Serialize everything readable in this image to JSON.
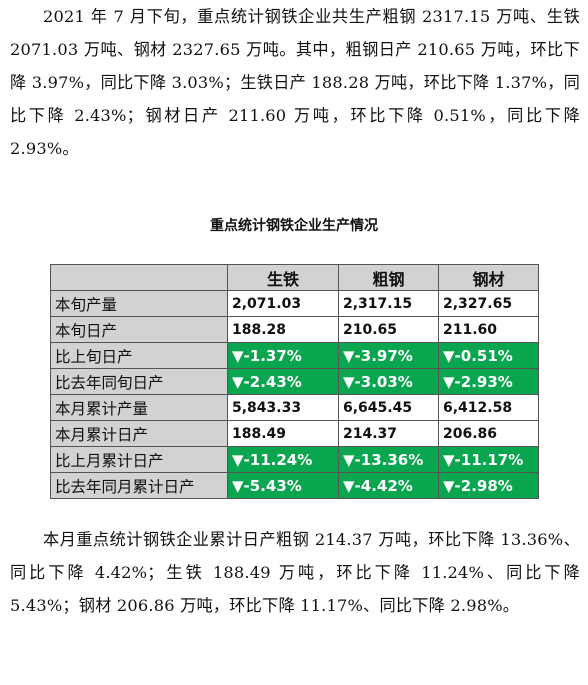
{
  "paragraph_top": "2021 年 7 月下旬，重点统计钢铁企业共生产粗钢 2317.15 万吨、生铁 2071.03 万吨、钢材 2327.65 万吨。其中，粗钢日产 210.65 万吨，环比下降 3.97%，同比下降 3.03%；生铁日产 188.28 万吨，环比下降 1.37%，同比下降 2.43%；钢材日产 211.60 万吨，环比下降 0.51%，同比下降 2.93%。",
  "table": {
    "caption": "重点统计钢铁企业生产情况",
    "columns": [
      "生铁",
      "粗钢",
      "钢材"
    ],
    "colors": {
      "header_bg": "#d2d2d2",
      "decline_bg": "#0aa64f",
      "decline_text": "#ffffff"
    },
    "rows": [
      {
        "label": "本旬产量",
        "kind": "num",
        "cells": [
          "2,071.03",
          "2,317.15",
          "2,327.65"
        ]
      },
      {
        "label": "本旬日产",
        "kind": "num",
        "cells": [
          "188.28",
          "210.65",
          "211.60"
        ]
      },
      {
        "label": "比上旬日产",
        "kind": "down",
        "cells": [
          "▼-1.37%",
          "▼-3.97%",
          "▼-0.51%"
        ]
      },
      {
        "label": "比去年同旬日产",
        "kind": "down",
        "cells": [
          "▼-2.43%",
          "▼-3.03%",
          "▼-2.93%"
        ]
      },
      {
        "label": "本月累计产量",
        "kind": "num",
        "cells": [
          "5,843.33",
          "6,645.45",
          "6,412.58"
        ]
      },
      {
        "label": "本月累计日产",
        "kind": "num",
        "cells": [
          "188.49",
          "214.37",
          "206.86"
        ]
      },
      {
        "label": "比上月累计日产",
        "kind": "down",
        "cells": [
          "▼-11.24%",
          "▼-13.36%",
          "▼-11.17%"
        ]
      },
      {
        "label": "比去年同月累计日产",
        "kind": "down",
        "cells": [
          "▼-5.43%",
          "▼-4.42%",
          "▼-2.98%"
        ]
      }
    ]
  },
  "paragraph_bottom": "本月重点统计钢铁企业累计日产粗钢 214.37 万吨，环比下降 13.36%、同比下降 4.42%；生铁 188.49 万吨，环比下降 11.24%、同比下降 5.43%；钢材 206.86 万吨，环比下降 11.17%、同比下降 2.98%。"
}
